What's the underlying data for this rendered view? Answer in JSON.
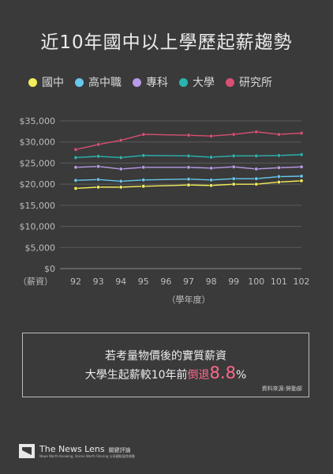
{
  "title": "近10年國中以上學歷起薪趨勢",
  "legend": [
    {
      "label": "國中",
      "color": "#f2ee5c"
    },
    {
      "label": "高中職",
      "color": "#66c8ee"
    },
    {
      "label": "專科",
      "color": "#b89ae8"
    },
    {
      "label": "大學",
      "color": "#2ab5b0"
    },
    {
      "label": "研究所",
      "color": "#d94f73"
    }
  ],
  "chart_data": {
    "type": "line",
    "x": [
      92,
      93,
      94,
      95,
      96,
      97,
      98,
      99,
      100,
      101,
      102
    ],
    "ylabel": "（薪資）",
    "xlabel": "（學年度）",
    "ylim": [
      0,
      35000
    ],
    "yticks": [
      "$0",
      "$5,000",
      "$10,000",
      "$15,000",
      "$20,000",
      "$25,000",
      "$30,000",
      "$35,000"
    ],
    "grid": true,
    "series": [
      {
        "name": "國中",
        "color": "#f2ee5c",
        "values": [
          19000,
          19300,
          19300,
          19500,
          null,
          19800,
          19700,
          20000,
          20000,
          20500,
          20800
        ]
      },
      {
        "name": "高中職",
        "color": "#66c8ee",
        "values": [
          20900,
          21100,
          20700,
          21000,
          null,
          21200,
          21000,
          21300,
          21300,
          21800,
          21900
        ]
      },
      {
        "name": "專科",
        "color": "#b89ae8",
        "values": [
          24000,
          24200,
          23600,
          24000,
          null,
          24000,
          23800,
          24100,
          23600,
          23900,
          24100
        ]
      },
      {
        "name": "大學",
        "color": "#2ab5b0",
        "values": [
          26300,
          26600,
          26300,
          26800,
          null,
          26700,
          26400,
          26700,
          26700,
          26800,
          27000
        ]
      },
      {
        "name": "研究所",
        "color": "#d94f73",
        "values": [
          28200,
          29400,
          30400,
          31800,
          null,
          31600,
          31400,
          31800,
          32400,
          31800,
          32100
        ]
      }
    ]
  },
  "note": {
    "line1": "若考量物價後的實質薪資",
    "line2_prefix": "大學生起薪較10年前",
    "line2_word": "倒退",
    "line2_value": "8.8",
    "line2_unit": "%",
    "source": "資料來源:勞動部"
  },
  "footer": {
    "brand": "The News Lens",
    "brand_cn": "關鍵評論",
    "tagline": "News Worth Knowing, Voices Worth Sharing  分享觀點值得傳播"
  }
}
